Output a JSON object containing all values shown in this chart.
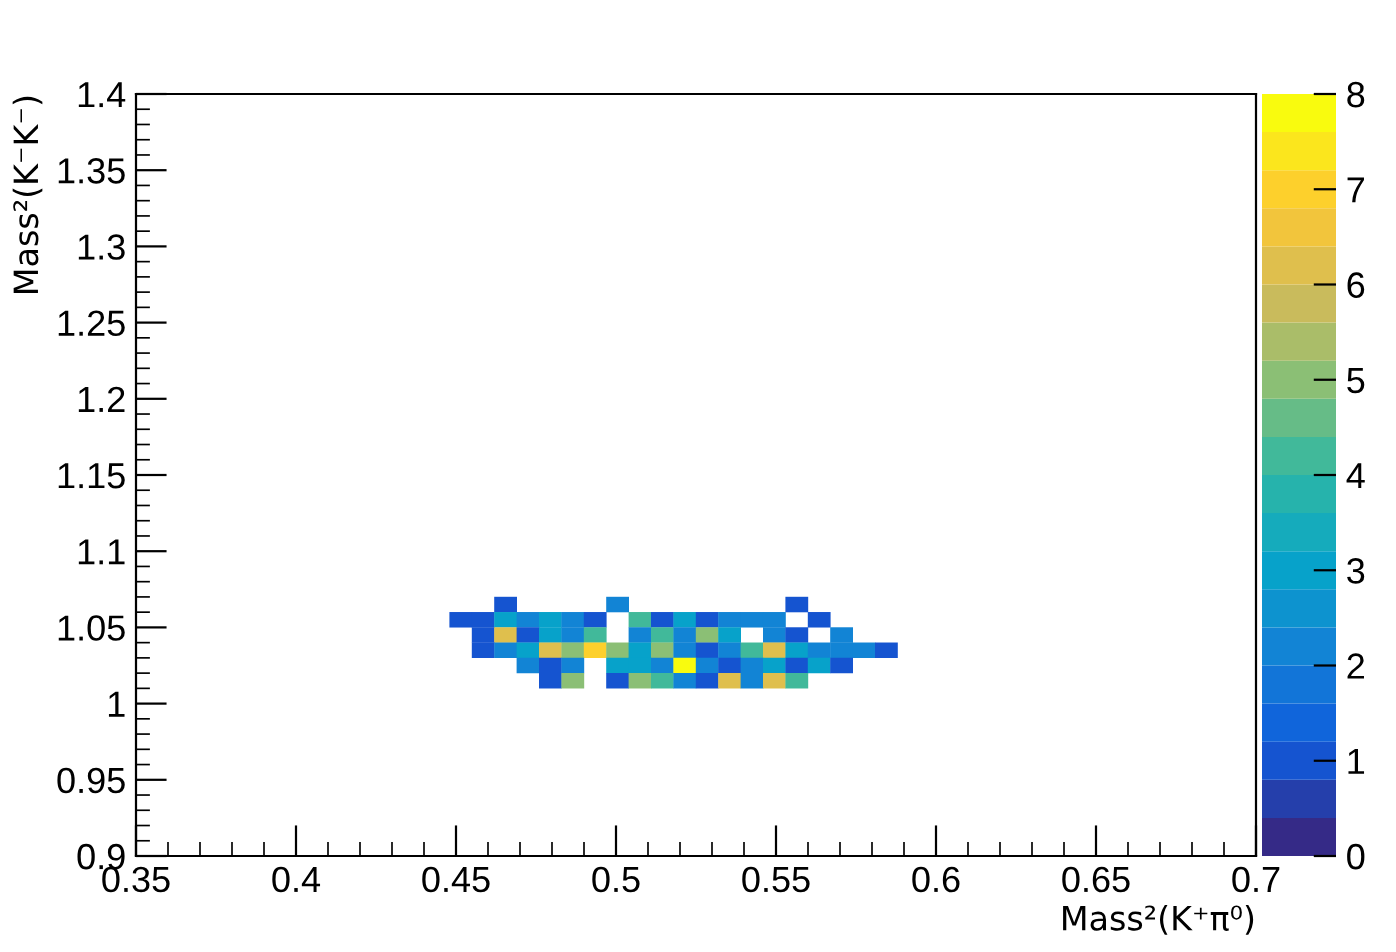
{
  "chart_data": {
    "type": "scatter",
    "xlabel": "Mass²(K⁺π⁰)",
    "ylabel": "Mass²(K⁻K⁻)",
    "marker": "square",
    "x": [
      0.4655,
      0.5005,
      0.5565,
      0.4515,
      0.4585,
      0.4655,
      0.4725,
      0.4795,
      0.4865,
      0.4935,
      0.5075,
      0.5145,
      0.5215,
      0.5285,
      0.5355,
      0.5425,
      0.5495,
      0.5635,
      0.4585,
      0.4655,
      0.4725,
      0.4795,
      0.4865,
      0.4935,
      0.5075,
      0.5145,
      0.5215,
      0.5285,
      0.5355,
      0.5495,
      0.5565,
      0.5705,
      0.4585,
      0.4655,
      0.4725,
      0.4795,
      0.4865,
      0.4935,
      0.5005,
      0.5075,
      0.5145,
      0.5215,
      0.5285,
      0.5355,
      0.5425,
      0.5495,
      0.5565,
      0.5635,
      0.5705,
      0.5775,
      0.5845,
      0.4725,
      0.4795,
      0.4865,
      0.5005,
      0.5075,
      0.5145,
      0.5215,
      0.5285,
      0.5355,
      0.5425,
      0.5495,
      0.5565,
      0.5635,
      0.5705,
      0.4795,
      0.4865,
      0.5005,
      0.5075,
      0.5145,
      0.5215,
      0.5285,
      0.5355,
      0.5425,
      0.5495,
      0.5565
    ],
    "values": [
      1.065,
      1.065,
      1.065,
      1.055,
      1.055,
      1.055,
      1.055,
      1.055,
      1.055,
      1.055,
      1.055,
      1.055,
      1.055,
      1.055,
      1.055,
      1.055,
      1.055,
      1.055,
      1.045,
      1.045,
      1.045,
      1.045,
      1.045,
      1.045,
      1.045,
      1.045,
      1.045,
      1.045,
      1.045,
      1.045,
      1.045,
      1.045,
      1.035,
      1.035,
      1.035,
      1.035,
      1.035,
      1.035,
      1.035,
      1.035,
      1.035,
      1.035,
      1.035,
      1.035,
      1.035,
      1.035,
      1.035,
      1.035,
      1.035,
      1.035,
      1.035,
      1.025,
      1.025,
      1.025,
      1.025,
      1.025,
      1.025,
      1.025,
      1.025,
      1.025,
      1.025,
      1.025,
      1.025,
      1.025,
      1.025,
      1.015,
      1.015,
      1.015,
      1.015,
      1.015,
      1.015,
      1.015,
      1.015,
      1.015,
      1.015,
      1.015
    ],
    "cvalues": [
      1,
      2,
      1,
      1,
      1,
      3,
      2,
      3,
      2,
      1,
      4,
      1,
      3,
      1,
      2,
      2,
      2,
      1,
      1,
      6,
      1,
      3,
      2,
      4,
      2,
      4,
      2,
      5,
      3,
      2,
      1,
      2,
      1,
      2,
      3,
      6,
      5,
      7,
      5,
      3,
      5,
      2,
      1,
      2,
      4,
      6,
      3,
      2,
      2,
      2,
      1,
      2,
      1,
      2,
      3,
      3,
      2,
      8,
      2,
      1,
      2,
      3,
      1,
      3,
      1,
      1,
      5,
      1,
      5,
      4,
      2,
      1,
      6,
      2,
      6,
      4
    ],
    "xlim": [
      0.35,
      0.7
    ],
    "xticks": [
      0.35,
      0.4,
      0.45,
      0.5,
      0.55,
      0.6,
      0.65,
      0.7
    ],
    "ylim": [
      0.9,
      1.4
    ],
    "yticks": [
      0.9,
      0.95,
      1,
      1.05,
      1.1,
      1.15,
      1.2,
      1.25,
      1.3,
      1.35,
      1.4
    ],
    "clim": [
      0,
      8
    ],
    "cticks": [
      0,
      1,
      2,
      3,
      4,
      5,
      6,
      7,
      8
    ]
  }
}
